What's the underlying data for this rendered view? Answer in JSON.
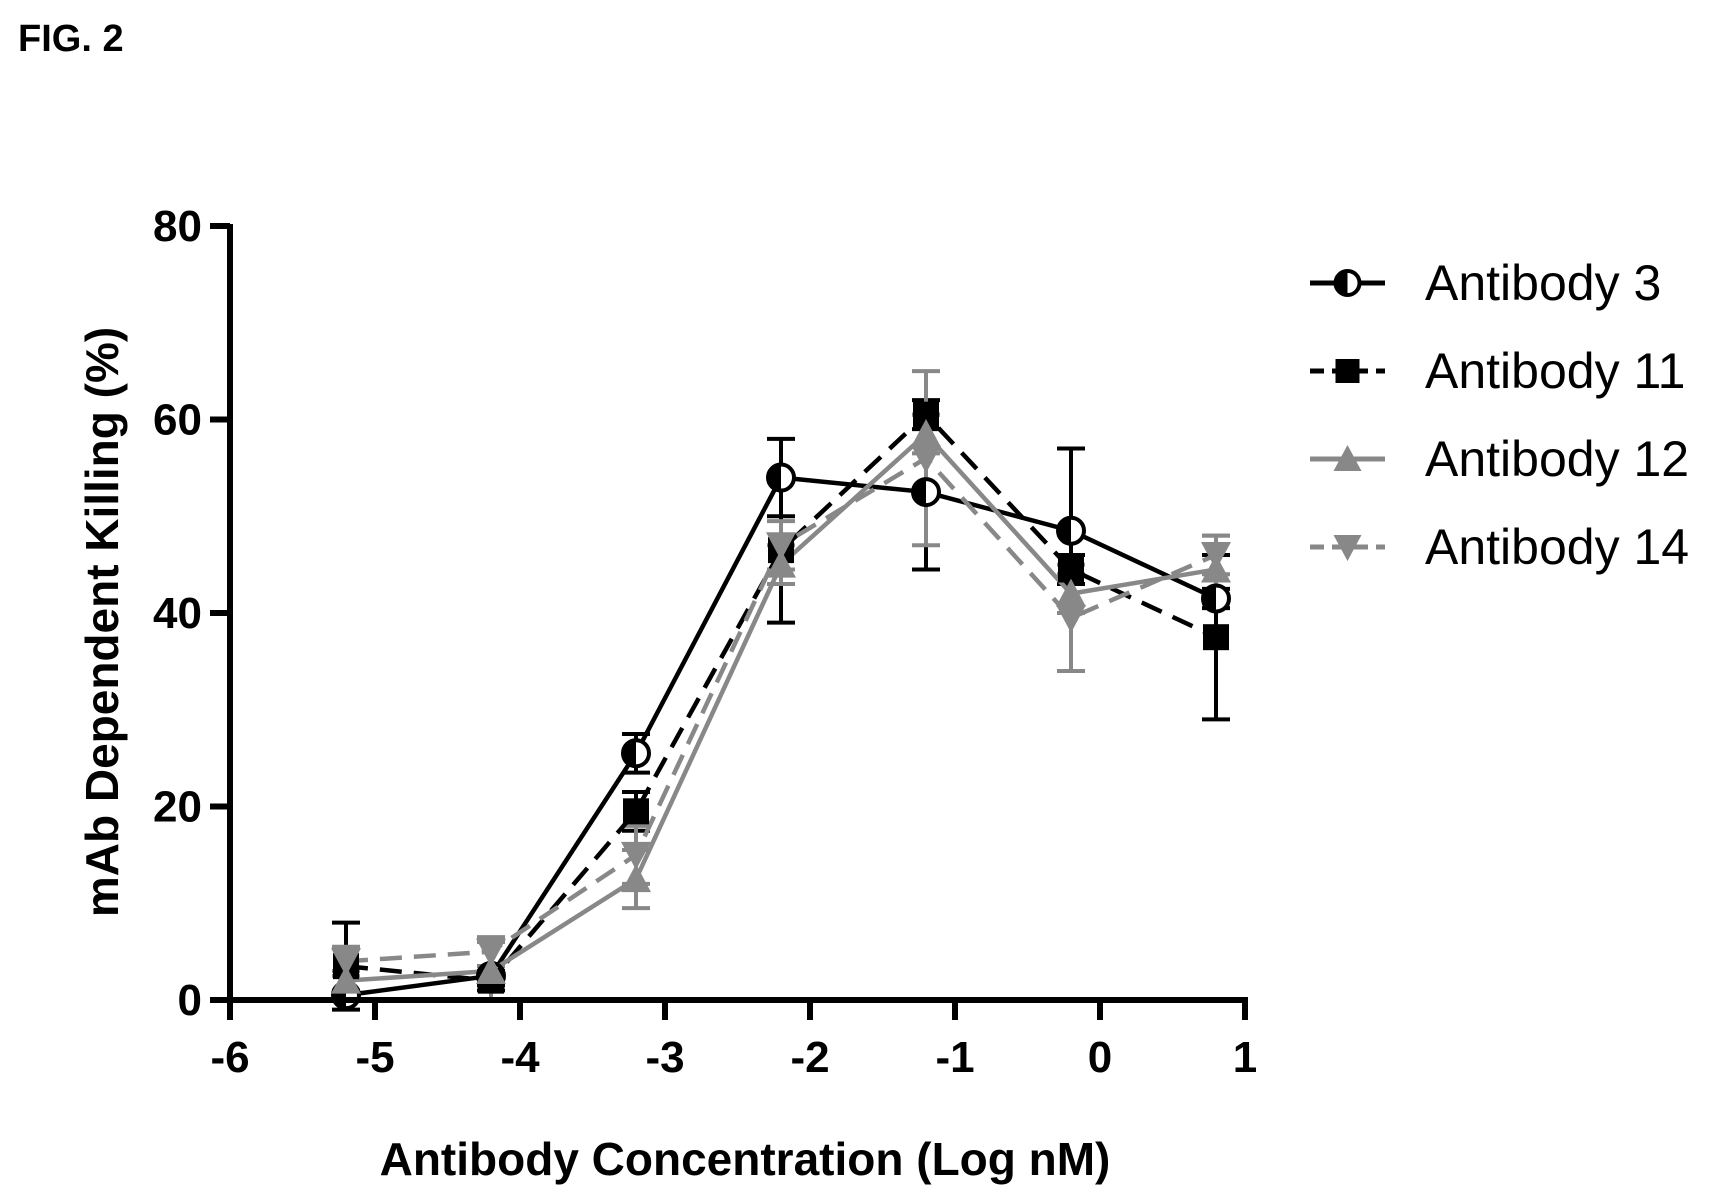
{
  "figure_label": "FIG. 2",
  "chart_data": {
    "type": "line",
    "title": "",
    "xlabel": "Antibody Concentration (Log nM)",
    "ylabel": "mAb Dependent Killing (%)",
    "xlim": [
      -6,
      1
    ],
    "ylim": [
      0,
      80
    ],
    "xticks": [
      -6,
      -5,
      -4,
      -3,
      -2,
      -1,
      0,
      1
    ],
    "yticks": [
      0,
      20,
      40,
      60,
      80
    ],
    "x": [
      -5.2,
      -4.2,
      -3.2,
      -2.2,
      -1.2,
      -0.2,
      0.8
    ],
    "grid": false,
    "legend_position": "right",
    "series": [
      {
        "name": "Antibody 3",
        "marker": "half-circle",
        "line": "solid",
        "color": "#000000",
        "values": [
          0.5,
          2.5,
          25.5,
          54,
          52.5,
          48.5,
          41.5
        ],
        "errors": [
          0.5,
          1,
          2,
          4,
          8,
          8.5,
          1
        ]
      },
      {
        "name": "Antibody 11",
        "marker": "square",
        "line": "dashed",
        "color": "#000000",
        "values": [
          3.5,
          2,
          19.5,
          46.5,
          60.5,
          44.5,
          37.5
        ],
        "errors": [
          4.5,
          1,
          2,
          7.5,
          1.5,
          1.5,
          8.5
        ]
      },
      {
        "name": "Antibody 12",
        "marker": "triangle-up",
        "line": "solid",
        "color": "#888888",
        "values": [
          2,
          3,
          12.5,
          45,
          58.5,
          42,
          44.5
        ],
        "errors": [
          1,
          3,
          3,
          2,
          2,
          2,
          3.5
        ]
      },
      {
        "name": "Antibody 14",
        "marker": "triangle-down",
        "line": "dashed",
        "color": "#888888",
        "values": [
          4,
          5,
          15,
          47,
          56,
          39.5,
          46
        ],
        "errors": [
          1.5,
          1.5,
          3,
          2.5,
          9,
          5.5,
          2
        ]
      }
    ]
  }
}
